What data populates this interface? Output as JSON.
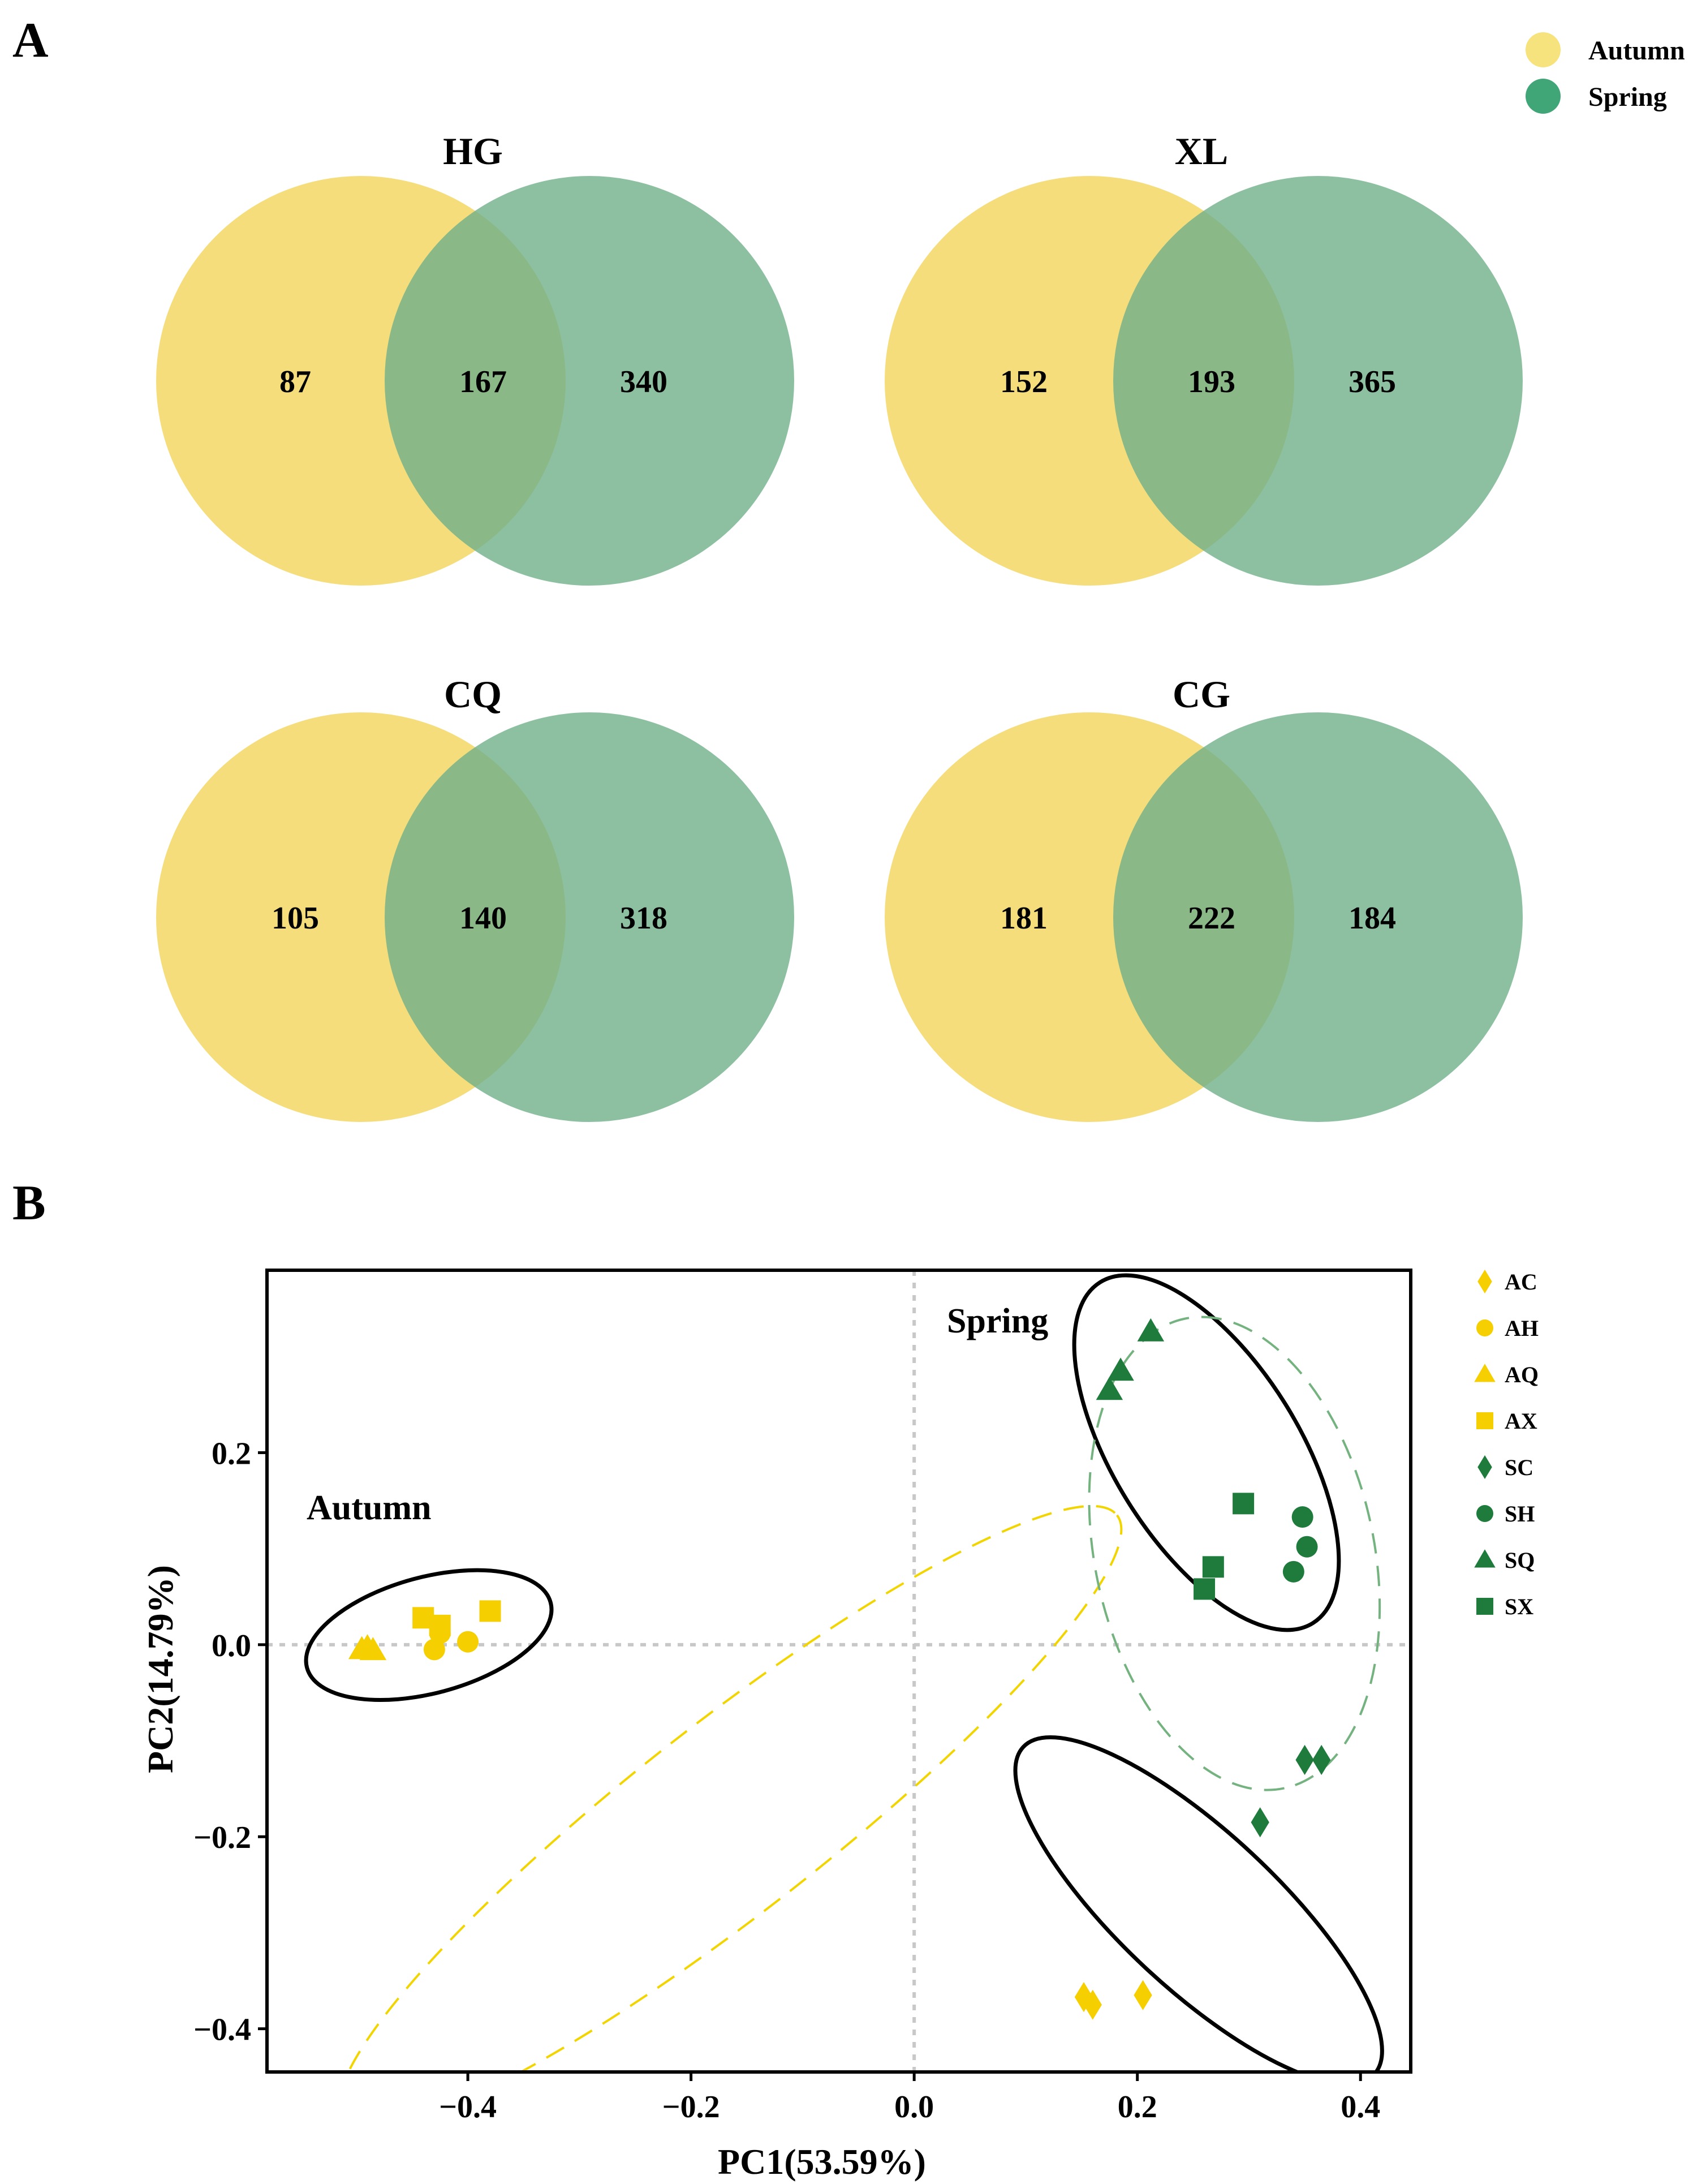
{
  "panel_labels": {
    "a": "A",
    "b": "B"
  },
  "colors": {
    "autumn": "#f5dd7c",
    "spring": "#6fb08a",
    "autumn_legend": "#f7e37e",
    "spring_legend": "#41a677",
    "autumn_marker": "#f5cf00",
    "spring_marker": "#1e7b3c",
    "autumn_dashed": "#f2d500",
    "spring_dashed": "#74b37f"
  },
  "legend": {
    "items": [
      {
        "label": "Autumn",
        "color_key": "autumn_legend"
      },
      {
        "label": "Spring",
        "color_key": "spring_legend"
      }
    ]
  },
  "chart_data": [
    {
      "type": "venn",
      "panel": "A",
      "sets": [
        "Autumn",
        "Spring"
      ],
      "diagrams": [
        {
          "title": "HG",
          "autumn_only": 87,
          "shared": 167,
          "spring_only": 340
        },
        {
          "title": "XL",
          "autumn_only": 152,
          "shared": 193,
          "spring_only": 365
        },
        {
          "title": "CQ",
          "autumn_only": 105,
          "shared": 140,
          "spring_only": 318
        },
        {
          "title": "CG",
          "autumn_only": 181,
          "shared": 222,
          "spring_only": 184
        }
      ]
    },
    {
      "type": "scatter",
      "panel": "B",
      "xlabel": "PC1(53.59%)",
      "ylabel": "PC2(14.79%)",
      "xlim": [
        -0.58,
        0.445
      ],
      "ylim": [
        -0.445,
        0.39
      ],
      "xticks": [
        -0.4,
        -0.2,
        0.0,
        0.2,
        0.4
      ],
      "xtick_labels": [
        "−0.4",
        "−0.2",
        "0.0",
        "0.2",
        "0.4"
      ],
      "yticks": [
        -0.4,
        -0.2,
        0.0,
        0.2
      ],
      "ytick_labels": [
        "−0.4",
        "−0.2",
        "0.0",
        "0.2"
      ],
      "group_labels": [
        {
          "text": "Autumn",
          "x": -0.555,
          "y": 0.27
        },
        {
          "text": "Spring",
          "x": 0.02,
          "y": 0.675
        }
      ],
      "series": [
        {
          "name": "AC",
          "marker": "diamond",
          "season": "autumn",
          "points": [
            [
              0.152,
              -0.367
            ],
            [
              0.16,
              -0.375
            ],
            [
              0.205,
              -0.365
            ]
          ]
        },
        {
          "name": "AH",
          "marker": "circle",
          "season": "autumn",
          "points": [
            [
              -0.425,
              0.012
            ],
            [
              -0.4,
              0.003
            ],
            [
              -0.43,
              -0.005
            ]
          ]
        },
        {
          "name": "AQ",
          "marker": "triangle",
          "season": "autumn",
          "points": [
            [
              -0.495,
              -0.005
            ],
            [
              -0.49,
              -0.003
            ],
            [
              -0.485,
              -0.006
            ]
          ]
        },
        {
          "name": "AX",
          "marker": "square",
          "season": "autumn",
          "points": [
            [
              -0.44,
              0.028
            ],
            [
              -0.425,
              0.02
            ],
            [
              -0.38,
              0.035
            ]
          ]
        },
        {
          "name": "SC",
          "marker": "diamond",
          "season": "spring",
          "points": [
            [
              0.31,
              -0.185
            ],
            [
              0.35,
              -0.12
            ],
            [
              0.365,
              -0.12
            ]
          ]
        },
        {
          "name": "SH",
          "marker": "circle",
          "season": "spring",
          "points": [
            [
              0.348,
              0.133
            ],
            [
              0.352,
              0.102
            ],
            [
              0.34,
              0.076
            ]
          ]
        },
        {
          "name": "SQ",
          "marker": "triangle",
          "season": "spring",
          "points": [
            [
              0.212,
              0.326
            ],
            [
              0.185,
              0.285
            ],
            [
              0.175,
              0.265
            ]
          ]
        },
        {
          "name": "SX",
          "marker": "square",
          "season": "spring",
          "points": [
            [
              0.295,
              0.147
            ],
            [
              0.268,
              0.081
            ],
            [
              0.26,
              0.058
            ]
          ]
        }
      ],
      "ellipses": [
        {
          "style": "solid",
          "cx": -0.435,
          "cy": 0.01,
          "rx": 0.113,
          "ry": 0.052,
          "angle_deg": -15
        },
        {
          "style": "solid",
          "cx": 0.262,
          "cy": 0.2,
          "rx": 0.18,
          "ry": 0.083,
          "angle_deg": 58
        },
        {
          "style": "solid",
          "cx": 0.255,
          "cy": -0.277,
          "rx": 0.215,
          "ry": 0.07,
          "angle_deg": 43
        },
        {
          "style": "dashed",
          "season": "autumn",
          "cx": -0.165,
          "cy": -0.18,
          "rx": 0.44,
          "ry": 0.085,
          "angle_deg": -38
        },
        {
          "style": "dashed",
          "season": "spring",
          "cx": 0.287,
          "cy": 0.095,
          "rx": 0.215,
          "ry": 0.125,
          "angle_deg": 78
        }
      ],
      "legend_items": [
        "AC",
        "AH",
        "AQ",
        "AX",
        "SC",
        "SH",
        "SQ",
        "SX"
      ]
    }
  ]
}
